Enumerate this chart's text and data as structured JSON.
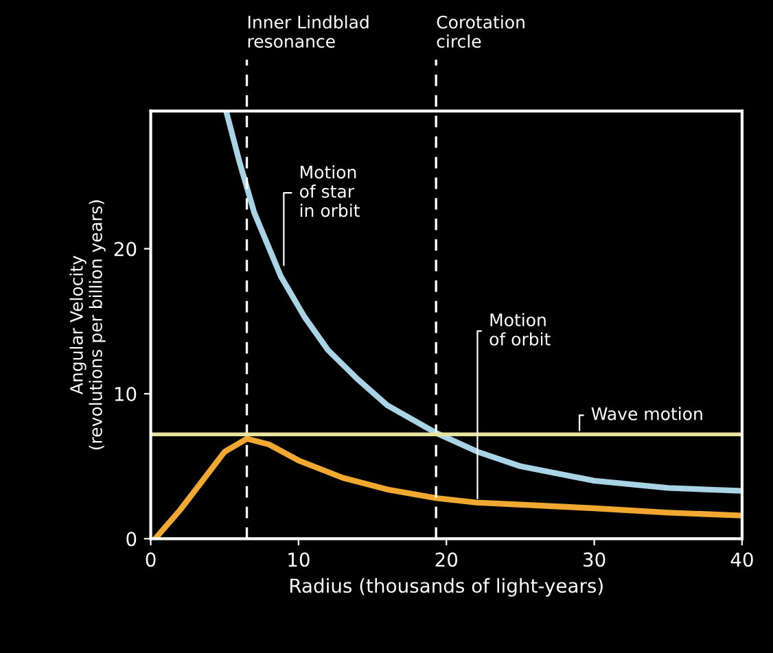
{
  "chart_data": {
    "type": "line",
    "xlabel": "Radius (thousands of light-years)",
    "ylabel": "Angular Velocity\n(revolutions per billion years)",
    "xlim": [
      0,
      40
    ],
    "xticks": [
      0,
      10,
      20,
      30,
      40
    ],
    "ylim": [
      0,
      29.5
    ],
    "yticks": [
      0,
      10,
      20
    ],
    "grid": false,
    "series": [
      {
        "color": "#a8d4e6",
        "x": [
          5.1,
          6,
          7,
          8.8,
          10.4,
          12,
          14,
          16,
          19.3,
          22.1,
          25,
          30,
          35,
          40
        ],
        "values": [
          29.5,
          26,
          22.5,
          18.1,
          15.3,
          13,
          11,
          9.2,
          7.3,
          6.0,
          5.0,
          4.0,
          3.5,
          3.3
        ]
      },
      {
        "color": "#f0a830",
        "x": [
          0.3,
          2,
          3.5,
          5,
          6.5,
          8,
          10,
          13,
          16,
          19.3,
          22,
          26,
          30,
          35,
          40
        ],
        "values": [
          0,
          2,
          4,
          6,
          6.9,
          6.5,
          5.4,
          4.2,
          3.4,
          2.8,
          2.5,
          2.3,
          2.1,
          1.8,
          1.6
        ]
      }
    ],
    "ref_lines": [
      {
        "axis": "x",
        "value": 6.5,
        "label": "Inner Lindblad\nresonance",
        "line_style": "dashed",
        "color": "#ffffff"
      },
      {
        "axis": "x",
        "value": 19.3,
        "label": "Corotation\ncircle",
        "line_style": "dashed",
        "color": "#ffffff"
      },
      {
        "axis": "y",
        "value": 7.2,
        "color": "#e8e4a0",
        "line_style": "solid"
      }
    ],
    "annotations": [
      {
        "text": "Motion\nof star\nin orbit",
        "x": 9.0,
        "y": 18.6
      },
      {
        "text": "Motion\nof orbit",
        "x": 22.1,
        "y": 2.5
      },
      {
        "text": "Wave motion",
        "x": 29,
        "y": 7.2
      }
    ]
  }
}
